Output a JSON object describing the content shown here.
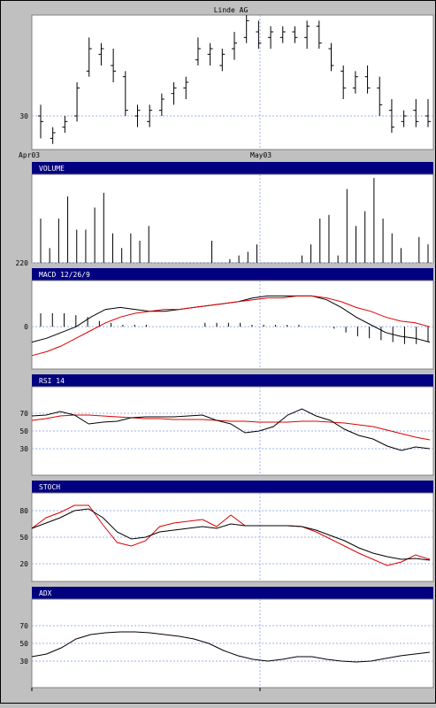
{
  "chart_data": {
    "title": "Linde AG",
    "x_ticks": [
      "Apr03",
      "May03"
    ],
    "price": {
      "type": "ohlc",
      "y_ticks": [
        30
      ],
      "bars": [
        {
          "h": 32,
          "l": 26,
          "o": 30,
          "c": 29
        },
        {
          "h": 28,
          "l": 25,
          "o": 26,
          "c": 27
        },
        {
          "h": 30,
          "l": 27,
          "o": 28,
          "c": 29
        },
        {
          "h": 36,
          "l": 29,
          "o": 30,
          "c": 35
        },
        {
          "h": 44,
          "l": 37,
          "o": 38,
          "c": 42
        },
        {
          "h": 43,
          "l": 39,
          "o": 41,
          "c": 42
        },
        {
          "h": 42,
          "l": 36,
          "o": 39,
          "c": 38
        },
        {
          "h": 38,
          "l": 30,
          "o": 37,
          "c": 31
        },
        {
          "h": 32,
          "l": 28,
          "o": 30,
          "c": 31
        },
        {
          "h": 32,
          "l": 28,
          "o": 29,
          "c": 31
        },
        {
          "h": 34,
          "l": 30,
          "o": 31,
          "c": 33
        },
        {
          "h": 36,
          "l": 32,
          "o": 34,
          "c": 35
        },
        {
          "h": 37,
          "l": 33,
          "o": 35,
          "c": 36
        },
        {
          "h": 44,
          "l": 39,
          "o": 40,
          "c": 42
        },
        {
          "h": 43,
          "l": 39,
          "o": 41,
          "c": 42
        },
        {
          "h": 42,
          "l": 38,
          "o": 39,
          "c": 41
        },
        {
          "h": 45,
          "l": 40,
          "o": 42,
          "c": 43
        },
        {
          "h": 48,
          "l": 43,
          "o": 44,
          "c": 47
        },
        {
          "h": 47,
          "l": 42,
          "o": 45,
          "c": 43
        },
        {
          "h": 46,
          "l": 42,
          "o": 44,
          "c": 45
        },
        {
          "h": 46,
          "l": 43,
          "o": 44,
          "c": 45
        },
        {
          "h": 46,
          "l": 43,
          "o": 45,
          "c": 44
        },
        {
          "h": 47,
          "l": 42,
          "o": 44,
          "c": 46
        },
        {
          "h": 47,
          "l": 42,
          "o": 46,
          "c": 43
        },
        {
          "h": 43,
          "l": 38,
          "o": 42,
          "c": 39
        },
        {
          "h": 39,
          "l": 33,
          "o": 38,
          "c": 35
        },
        {
          "h": 38,
          "l": 34,
          "o": 35,
          "c": 37
        },
        {
          "h": 39,
          "l": 34,
          "o": 37,
          "c": 35
        },
        {
          "h": 37,
          "l": 30,
          "o": 35,
          "c": 32
        },
        {
          "h": 33,
          "l": 27,
          "o": 31,
          "c": 28
        },
        {
          "h": 31,
          "l": 28,
          "o": 29,
          "c": 30
        },
        {
          "h": 33,
          "l": 28,
          "o": 31,
          "c": 29
        },
        {
          "h": 33,
          "l": 28,
          "o": 30,
          "c": 29
        }
      ]
    },
    "volume": {
      "type": "bar",
      "label": "VOLUME",
      "y_ticks": [
        220
      ],
      "values": [
        60,
        20,
        60,
        90,
        45,
        45,
        75,
        95,
        40,
        20,
        40,
        30,
        50,
        0,
        0,
        0,
        0,
        0,
        0,
        30,
        0,
        5,
        10,
        15,
        25,
        0,
        0,
        0,
        0,
        10,
        25,
        60,
        65,
        10,
        100,
        50,
        70,
        115,
        60,
        40,
        20,
        0,
        35,
        25
      ]
    },
    "macd": {
      "type": "line",
      "label": "MACD 12/26/9",
      "y_ticks": [
        0
      ],
      "macd": [
        -0.8,
        -0.6,
        -0.3,
        0.0,
        0.5,
        0.9,
        1.0,
        0.9,
        0.8,
        0.8,
        0.9,
        1.0,
        1.1,
        1.2,
        1.3,
        1.5,
        1.6,
        1.6,
        1.6,
        1.6,
        1.4,
        1.0,
        0.5,
        0.1,
        -0.3,
        -0.5,
        -0.6,
        -0.8
      ],
      "signal": [
        -1.5,
        -1.3,
        -1.0,
        -0.6,
        -0.2,
        0.2,
        0.5,
        0.7,
        0.8,
        0.9,
        0.9,
        1.0,
        1.1,
        1.2,
        1.3,
        1.4,
        1.5,
        1.5,
        1.6,
        1.6,
        1.5,
        1.3,
        1.0,
        0.8,
        0.5,
        0.3,
        0.2,
        0.0
      ],
      "histogram": [
        0.7,
        0.7,
        0.7,
        0.6,
        0.5,
        0.3,
        0.2,
        0.1,
        0.1,
        0.1,
        0,
        0,
        0,
        0,
        0.2,
        0.2,
        0.2,
        0.2,
        0.1,
        0.1,
        0.1,
        0.1,
        0.1,
        0,
        0,
        -0.1,
        -0.3,
        -0.5,
        -0.6,
        -0.7,
        -0.8,
        -0.9,
        -0.9,
        -0.8
      ]
    },
    "rsi": {
      "type": "line",
      "label": "RSI 14",
      "y_ticks": [
        70,
        50,
        30
      ],
      "rsi": [
        67,
        68,
        72,
        68,
        58,
        60,
        61,
        65,
        66,
        66,
        66,
        67,
        68,
        62,
        58,
        48,
        50,
        55,
        68,
        75,
        67,
        62,
        52,
        45,
        41,
        33,
        28,
        32,
        30
      ],
      "signal": [
        62,
        64,
        67,
        68,
        68,
        67,
        66,
        65,
        64,
        64,
        63,
        63,
        63,
        62,
        61,
        61,
        60,
        60,
        60,
        61,
        61,
        60,
        59,
        57,
        55,
        51,
        47,
        43,
        40
      ]
    },
    "stoch": {
      "type": "line",
      "label": "STOCH",
      "y_ticks": [
        80,
        50,
        20
      ],
      "k": [
        60,
        72,
        78,
        86,
        86,
        64,
        44,
        40,
        46,
        62,
        66,
        68,
        70,
        62,
        75,
        63,
        63,
        63,
        63,
        62,
        56,
        48,
        40,
        32,
        25,
        18,
        22,
        30,
        25
      ],
      "d": [
        60,
        66,
        72,
        80,
        82,
        72,
        56,
        48,
        50,
        56,
        58,
        60,
        62,
        60,
        65,
        63,
        63,
        63,
        63,
        62,
        58,
        52,
        46,
        38,
        32,
        28,
        25,
        26,
        24
      ]
    },
    "adx": {
      "type": "line",
      "label": "ADX",
      "y_ticks": [
        70,
        50,
        30
      ],
      "values": [
        35,
        38,
        45,
        55,
        60,
        62,
        63,
        63,
        62,
        60,
        58,
        55,
        50,
        42,
        36,
        32,
        30,
        32,
        35,
        35,
        32,
        30,
        29,
        30,
        33,
        36,
        38,
        40
      ]
    }
  }
}
